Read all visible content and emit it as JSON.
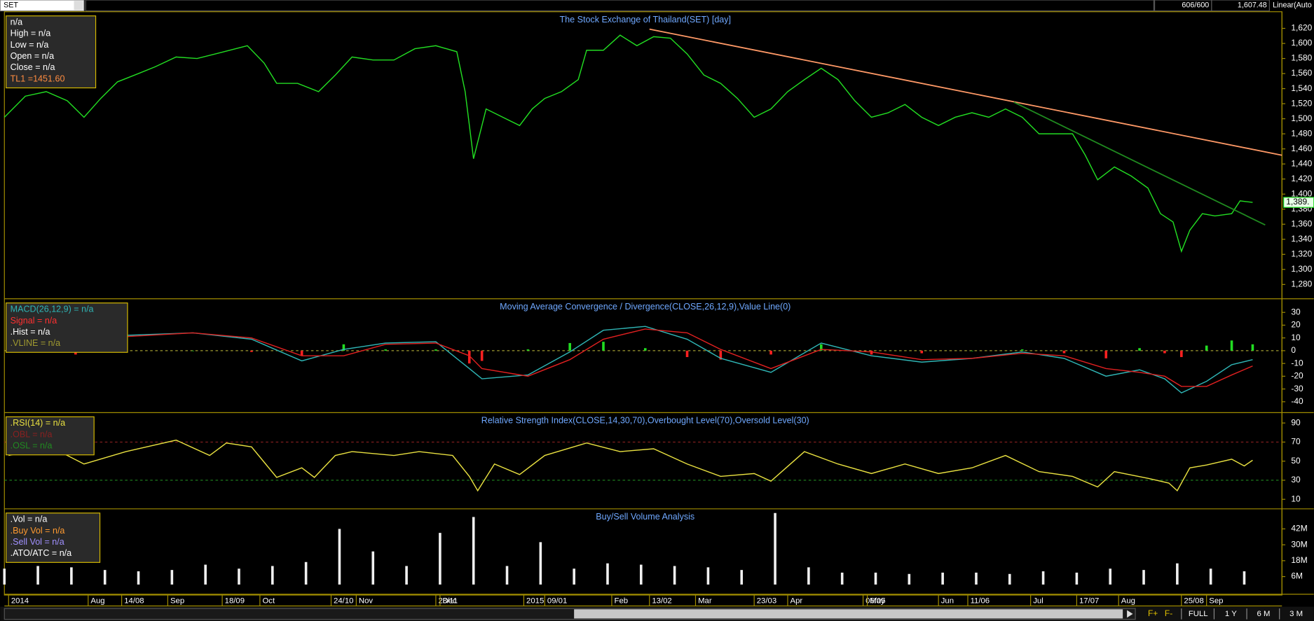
{
  "toolbar": {
    "symbol": "SET",
    "count": "606/600",
    "last": "1,607.48",
    "scale": "Linear(Auto"
  },
  "x_axis": {
    "xlim": [
      0,
      305
    ],
    "xticks": [
      {
        "value": 1,
        "label": "2014"
      },
      {
        "value": 20,
        "label": "Aug"
      },
      {
        "value": 28,
        "label": "14/08"
      },
      {
        "value": 39,
        "label": "Sep"
      },
      {
        "value": 52,
        "label": "18/09"
      },
      {
        "value": 61,
        "label": "Oct"
      },
      {
        "value": 78,
        "label": "24/10"
      },
      {
        "value": 84,
        "label": "Nov"
      },
      {
        "value": 103,
        "label": "28/11"
      },
      {
        "value": 104,
        "label": "Dec"
      },
      {
        "value": 124,
        "label": "2015"
      },
      {
        "value": 129,
        "label": "09/01"
      },
      {
        "value": 145,
        "label": "Feb"
      },
      {
        "value": 154,
        "label": "13/02"
      },
      {
        "value": 165,
        "label": "Mar"
      },
      {
        "value": 179,
        "label": "23/03"
      },
      {
        "value": 187,
        "label": "Apr"
      },
      {
        "value": 205,
        "label": "06/05"
      },
      {
        "value": 206,
        "label": "May"
      },
      {
        "value": 223,
        "label": "Jun"
      },
      {
        "value": 230,
        "label": "11/06"
      },
      {
        "value": 245,
        "label": "Jul"
      },
      {
        "value": 256,
        "label": "17/07"
      },
      {
        "value": 266,
        "label": "Aug"
      },
      {
        "value": 281,
        "label": "25/08"
      },
      {
        "value": 287,
        "label": "Sep"
      }
    ]
  },
  "chart_data": [
    {
      "type": "line",
      "title": "The Stock Exchange of Thailand(SET) [day]",
      "legend": [
        {
          "label": "n/a",
          "color": "#ffffff"
        },
        {
          "label": "High  = n/a",
          "color": "#ffffff"
        },
        {
          "label": "Low  = n/a",
          "color": "#ffffff"
        },
        {
          "label": "Open  = n/a",
          "color": "#ffffff"
        },
        {
          "label": "Close  = n/a",
          "color": "#ffffff"
        },
        {
          "label": "TL1 =1451.60",
          "color": "#ff8c40"
        }
      ],
      "ylim": [
        1261,
        1641
      ],
      "yticks": [
        {
          "value": 1280,
          "label": "1,280"
        },
        {
          "value": 1300,
          "label": "1,300"
        },
        {
          "value": 1320,
          "label": "1,320"
        },
        {
          "value": 1340,
          "label": "1,340"
        },
        {
          "value": 1360,
          "label": "1,360"
        },
        {
          "value": 1380,
          "label": "1,380"
        },
        {
          "value": 1400,
          "label": "1,400"
        },
        {
          "value": 1420,
          "label": "1,420"
        },
        {
          "value": 1440,
          "label": "1,440"
        },
        {
          "value": 1460,
          "label": "1,460"
        },
        {
          "value": 1480,
          "label": "1,480"
        },
        {
          "value": 1500,
          "label": "1,500"
        },
        {
          "value": 1520,
          "label": "1,520"
        },
        {
          "value": 1540,
          "label": "1,540"
        },
        {
          "value": 1560,
          "label": "1,560"
        },
        {
          "value": 1580,
          "label": "1,580"
        },
        {
          "value": 1600,
          "label": "1,600"
        },
        {
          "value": 1620,
          "label": "1,620"
        }
      ],
      "series": [
        {
          "color": "#22dd22",
          "x": [
            0,
            5,
            10,
            15,
            19,
            23,
            27,
            32,
            36,
            41,
            46,
            51,
            58,
            62,
            65,
            70,
            75,
            79,
            83,
            88,
            93,
            98,
            103,
            108,
            110,
            112,
            115,
            119,
            123,
            126,
            129,
            133,
            137,
            139,
            143,
            147,
            151,
            155,
            159,
            163,
            167,
            171,
            175,
            179,
            183,
            187,
            191,
            195,
            199,
            203,
            207,
            211,
            215,
            219,
            223,
            227,
            231,
            235,
            239,
            243,
            247,
            251,
            255,
            258,
            261,
            265,
            269,
            273,
            276,
            279,
            281,
            283,
            286,
            289,
            293,
            295,
            298
          ],
          "values": [
            1502,
            1530,
            1536,
            1524,
            1502,
            1527,
            1549,
            1560,
            1569,
            1582,
            1580,
            1587,
            1597,
            1574,
            1547,
            1547,
            1536,
            1558,
            1582,
            1578,
            1578,
            1593,
            1597,
            1589,
            1536,
            1447,
            1513,
            1502,
            1491,
            1513,
            1527,
            1536,
            1552,
            1591,
            1591,
            1611,
            1597,
            1609,
            1607,
            1586,
            1558,
            1547,
            1527,
            1502,
            1513,
            1536,
            1552,
            1567,
            1552,
            1524,
            1502,
            1508,
            1519,
            1502,
            1491,
            1502,
            1508,
            1502,
            1513,
            1502,
            1480,
            1480,
            1480,
            1452,
            1419,
            1436,
            1424,
            1408,
            1374,
            1363,
            1324,
            1352,
            1374,
            1371,
            1374,
            1391,
            1389
          ]
        }
      ],
      "trendlines": [
        {
          "color": "#ff9966",
          "x": [
            154,
            305
          ],
          "values": [
            1619,
            1451.6
          ]
        },
        {
          "color": "#1f8a1f",
          "x": [
            241,
            301
          ],
          "values": [
            1522,
            1359
          ]
        }
      ],
      "last_label": "1,389."
    },
    {
      "type": "line",
      "title": "Moving Average Convergence / Divergence(CLOSE,26,12,9),Value Line(0)",
      "legend": [
        {
          "label": "MACD(26,12,9)   = n/a",
          "color": "#2fb5b5"
        },
        {
          "label": "Signal  = n/a",
          "color": "#ff3030"
        },
        {
          "label": ".Hist  = n/a",
          "color": "#ffffff"
        },
        {
          "label": ".VLINE   = n/a",
          "color": "#a09a30"
        }
      ],
      "ylim": [
        -48.5,
        40
      ],
      "yticks": [
        30,
        20,
        10,
        0,
        -10,
        -20,
        -30,
        -40
      ],
      "series": [
        {
          "type": "bar",
          "color": "#22dd22",
          "color_negative": "#ff2020",
          "x": [
            17,
            29,
            45,
            59,
            71,
            81,
            91,
            103,
            111,
            114,
            125,
            135,
            143,
            153,
            163,
            171,
            183,
            195,
            207,
            219,
            231,
            243,
            253,
            263,
            271,
            277,
            281,
            287,
            293,
            298
          ],
          "values": [
            -3,
            1,
            0,
            -1,
            -4,
            5,
            1,
            1,
            -10,
            -8,
            1,
            6,
            7,
            2,
            -5,
            -7,
            -3,
            5,
            -3,
            -2,
            0,
            1,
            -2,
            -6,
            2,
            -2,
            -5,
            4,
            8,
            5
          ]
        },
        {
          "color": "#2fb5b5",
          "x": [
            17,
            29,
            45,
            59,
            71,
            81,
            91,
            103,
            111,
            114,
            125,
            135,
            143,
            153,
            163,
            171,
            183,
            195,
            207,
            219,
            231,
            243,
            253,
            263,
            271,
            277,
            281,
            287,
            293,
            298
          ],
          "values": [
            9,
            12,
            14,
            9,
            -8,
            1,
            6,
            7,
            -14,
            -22,
            -19,
            -1,
            16,
            19,
            9,
            -6,
            -17,
            6,
            -4,
            -9,
            -6,
            -1,
            -6,
            -20,
            -15,
            -22,
            -33,
            -24,
            -11,
            -7
          ]
        },
        {
          "color": "#e02020",
          "x": [
            17,
            29,
            45,
            59,
            71,
            81,
            91,
            103,
            111,
            114,
            125,
            135,
            143,
            153,
            163,
            171,
            183,
            195,
            207,
            219,
            231,
            243,
            253,
            263,
            271,
            277,
            281,
            287,
            293,
            298
          ],
          "values": [
            12,
            11,
            14,
            10,
            -4,
            -4,
            5,
            6,
            -4,
            -14,
            -20,
            -7,
            9,
            17,
            14,
            1,
            -14,
            1,
            -1,
            -7,
            -6,
            -2,
            -4,
            -14,
            -17,
            -20,
            -28,
            -28,
            -19,
            -12
          ]
        }
      ],
      "levels": [
        {
          "value": 0,
          "color": "#a09a30"
        }
      ]
    },
    {
      "type": "line",
      "title": "Relative Strength Index(CLOSE,14,30,70),Overbought Level(70),Oversold Level(30)",
      "legend": [
        {
          "label": ".RSI(14)   = n/a",
          "color": "#e8e040"
        },
        {
          "label": ".OBL  = n/a",
          "color": "#8a2020"
        },
        {
          "label": ".OSL  = n/a",
          "color": "#208a20"
        }
      ],
      "ylim": [
        0,
        100
      ],
      "yticks": [
        90,
        70,
        50,
        30,
        10
      ],
      "series": [
        {
          "color": "#e8e040",
          "x": [
            1,
            11,
            19,
            29,
            41,
            49,
            53,
            59,
            65,
            71,
            74,
            79,
            83,
            93,
            99,
            107,
            111,
            113,
            117,
            123,
            129,
            139,
            147,
            155,
            163,
            171,
            179,
            183,
            191,
            199,
            207,
            215,
            223,
            231,
            239,
            247,
            255,
            261,
            265,
            273,
            278,
            280,
            283,
            287,
            293,
            296,
            298
          ],
          "values": [
            56,
            65,
            47,
            60,
            72,
            56,
            69,
            65,
            33,
            43,
            33,
            56,
            60,
            56,
            60,
            56,
            34,
            19,
            47,
            36,
            56,
            69,
            60,
            63,
            47,
            34,
            37,
            29,
            60,
            47,
            37,
            47,
            37,
            43,
            56,
            39,
            34,
            23,
            39,
            32,
            27,
            19,
            43,
            46,
            52,
            45,
            51
          ]
        }
      ],
      "levels": [
        {
          "value": 70,
          "color": "#8a2020"
        },
        {
          "value": 30,
          "color": "#208a20"
        }
      ]
    },
    {
      "type": "bar",
      "title": "Buy/Sell Volume Analysis",
      "legend": [
        {
          "label": ".Vol   = n/a",
          "color": "#ffffff"
        },
        {
          "label": ".Buy Vol   = n/a",
          "color": "#ff9a30"
        },
        {
          "label": ".Sell Vol   = n/a",
          "color": "#a090ff"
        },
        {
          "label": ".ATO/ATC  = n/a",
          "color": "#ffffff"
        }
      ],
      "ylim": [
        -7300000,
        56500000
      ],
      "yticks": [
        {
          "value": 42000000,
          "label": "42M"
        },
        {
          "value": 30000000,
          "label": "30M"
        },
        {
          "value": 18000000,
          "label": "18M"
        },
        {
          "value": 6000000,
          "label": "6M"
        }
      ],
      "series": [
        {
          "color": "#f0f0f0",
          "x": [
            0,
            8,
            16,
            24,
            32,
            40,
            48,
            56,
            64,
            72,
            80,
            88,
            96,
            104,
            112,
            120,
            128,
            136,
            144,
            152,
            160,
            168,
            176,
            184,
            192,
            200,
            208,
            216,
            224,
            232,
            240,
            248,
            256,
            264,
            272,
            280,
            288,
            296
          ],
          "values": [
            12000000,
            14000000,
            13000000,
            11000000,
            10000000,
            11000000,
            15000000,
            12000000,
            14000000,
            17000000,
            42000000,
            25000000,
            14000000,
            39000000,
            51000000,
            14000000,
            32000000,
            12000000,
            16000000,
            15000000,
            14000000,
            13000000,
            11000000,
            54000000,
            13000000,
            9000000,
            9000000,
            8000000,
            9000000,
            9000000,
            8000000,
            10000000,
            9000000,
            12000000,
            11000000,
            16000000,
            12000000,
            10000000
          ]
        }
      ]
    }
  ],
  "bottom_bar": {
    "buttons": [
      "FULL",
      "1 Y",
      "6 M",
      "3 M"
    ]
  }
}
